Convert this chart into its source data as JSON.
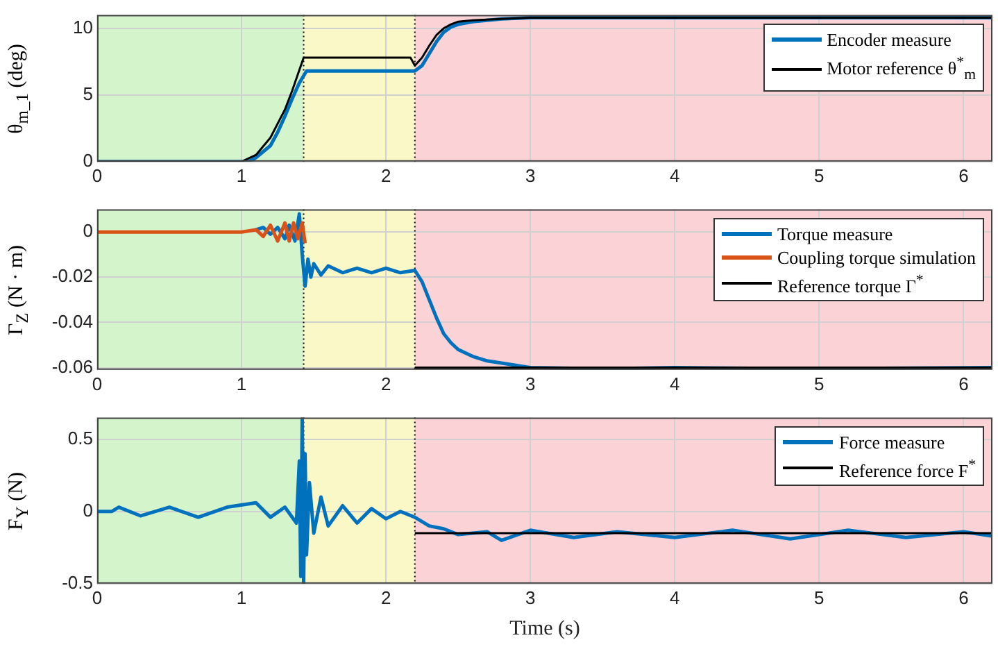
{
  "chart_data": [
    {
      "type": "line",
      "ylabel": "θ$_{m_1}$ (deg)",
      "xlim": [
        0,
        6.2
      ],
      "xticks": [
        0,
        1,
        2,
        3,
        4,
        5,
        6
      ],
      "ylim": [
        0,
        11
      ],
      "yticks": [
        0,
        5,
        10
      ],
      "grid": true,
      "legend": "top right",
      "bands": [
        {
          "axis": "x",
          "from": 0,
          "to": 1.43,
          "color": "#d4f5cc"
        },
        {
          "axis": "x",
          "from": 1.43,
          "to": 2.2,
          "color": "#fbf8c8"
        },
        {
          "axis": "x",
          "from": 2.2,
          "to": 6.2,
          "color": "#fbd3d6"
        }
      ],
      "ref_lines": [
        {
          "axis": "x",
          "value": 1.43,
          "color": "#000000",
          "line_style": "dotted"
        },
        {
          "axis": "x",
          "value": 2.2,
          "color": "#000000",
          "line_style": "dotted"
        }
      ],
      "series": [
        {
          "name": "Encoder measure",
          "color": "#0072bd",
          "x": [
            0,
            1.05,
            1.1,
            1.2,
            1.25,
            1.3,
            1.35,
            1.4,
            1.45,
            1.5,
            2.0,
            2.2,
            2.25,
            2.3,
            2.35,
            2.4,
            2.45,
            2.5,
            2.6,
            2.7,
            2.8,
            3.0,
            3.5,
            4,
            5,
            6.2
          ],
          "values": [
            0,
            0,
            0.3,
            1.2,
            2.2,
            3.4,
            4.7,
            5.9,
            6.8,
            6.8,
            6.8,
            6.8,
            7.2,
            8.1,
            9.0,
            9.7,
            10.1,
            10.3,
            10.5,
            10.6,
            10.7,
            10.8,
            10.8,
            10.8,
            10.8,
            10.8
          ]
        },
        {
          "name": "Motor reference θ$^{*}$$_{m}$",
          "color": "#000000",
          "x": [
            0,
            1.0,
            1.1,
            1.2,
            1.3,
            1.35,
            1.43,
            1.5,
            2.0,
            2.17,
            2.2,
            2.25,
            2.3,
            2.35,
            2.4,
            2.45,
            2.5,
            2.6,
            2.8,
            3.0,
            4,
            6.2
          ],
          "values": [
            0,
            0,
            0.5,
            1.8,
            3.9,
            5.3,
            7.8,
            7.8,
            7.8,
            7.8,
            7.2,
            7.8,
            8.7,
            9.5,
            10.0,
            10.3,
            10.5,
            10.6,
            10.7,
            10.8,
            10.8,
            10.8
          ]
        }
      ]
    },
    {
      "type": "line",
      "ylabel": "Γ$_{Z}$ (N · m)",
      "xlim": [
        0,
        6.2
      ],
      "xticks": [
        0,
        1,
        2,
        3,
        4,
        5,
        6
      ],
      "ylim": [
        -0.061,
        0.01
      ],
      "yticks": [
        -0.06,
        -0.04,
        -0.02,
        0
      ],
      "grid": true,
      "legend": "top right",
      "bands": [
        {
          "axis": "x",
          "from": 0,
          "to": 1.43,
          "color": "#d4f5cc"
        },
        {
          "axis": "x",
          "from": 1.43,
          "to": 2.2,
          "color": "#fbf8c8"
        },
        {
          "axis": "x",
          "from": 2.2,
          "to": 6.2,
          "color": "#fbd3d6"
        }
      ],
      "ref_lines": [
        {
          "axis": "x",
          "value": 1.43,
          "color": "#000000",
          "line_style": "dotted"
        },
        {
          "axis": "x",
          "value": 2.2,
          "color": "#000000",
          "line_style": "dotted"
        }
      ],
      "series": [
        {
          "name": "Torque measure",
          "color": "#0072bd",
          "x": [
            1.1,
            1.15,
            1.2,
            1.25,
            1.3,
            1.33,
            1.37,
            1.4,
            1.42,
            1.44,
            1.46,
            1.48,
            1.5,
            1.55,
            1.6,
            1.7,
            1.8,
            1.9,
            2.0,
            2.1,
            2.2,
            2.25,
            2.3,
            2.35,
            2.4,
            2.45,
            2.5,
            2.6,
            2.7,
            2.8,
            2.9,
            3.0,
            3.5,
            4,
            5,
            6.2
          ],
          "values": [
            0.001,
            0.002,
            -0.001,
            0.002,
            -0.003,
            0.003,
            -0.004,
            0.008,
            -0.01,
            -0.024,
            -0.012,
            -0.02,
            -0.014,
            -0.019,
            -0.015,
            -0.018,
            -0.016,
            -0.018,
            -0.016,
            -0.018,
            -0.017,
            -0.022,
            -0.03,
            -0.038,
            -0.045,
            -0.049,
            -0.052,
            -0.055,
            -0.057,
            -0.058,
            -0.059,
            -0.06,
            -0.0605,
            -0.06,
            -0.0605,
            -0.06
          ]
        },
        {
          "name": "Coupling torque simulation",
          "color": "#d95319",
          "x": [
            0,
            1.0,
            1.1,
            1.15,
            1.2,
            1.25,
            1.3,
            1.33,
            1.36,
            1.39,
            1.42,
            1.44
          ],
          "values": [
            0,
            0,
            0.001,
            -0.002,
            0.003,
            -0.004,
            0.004,
            -0.004,
            0.004,
            -0.003,
            0.004,
            -0.005
          ]
        },
        {
          "name": "Reference torque Γ$^{*}$",
          "color": "#000000",
          "x": [
            2.2,
            6.2
          ],
          "values": [
            -0.06,
            -0.06
          ]
        }
      ]
    },
    {
      "type": "line",
      "ylabel": "F$_{Y}$ (N)",
      "xlabel": "Time (s)",
      "xlim": [
        0,
        6.2
      ],
      "xticks": [
        0,
        1,
        2,
        3,
        4,
        5,
        6
      ],
      "ylim": [
        -0.5,
        0.65
      ],
      "yticks": [
        -0.5,
        0,
        0.5
      ],
      "grid": true,
      "legend": "top right",
      "bands": [
        {
          "axis": "x",
          "from": 0,
          "to": 1.43,
          "color": "#d4f5cc"
        },
        {
          "axis": "x",
          "from": 1.43,
          "to": 2.2,
          "color": "#fbf8c8"
        },
        {
          "axis": "x",
          "from": 2.2,
          "to": 6.2,
          "color": "#fbd3d6"
        }
      ],
      "ref_lines": [
        {
          "axis": "x",
          "value": 1.43,
          "color": "#000000",
          "line_style": "dotted"
        },
        {
          "axis": "x",
          "value": 2.2,
          "color": "#000000",
          "line_style": "dotted"
        }
      ],
      "series": [
        {
          "name": "Force measure",
          "color": "#0072bd",
          "x": [
            0,
            0.1,
            0.15,
            0.3,
            0.5,
            0.7,
            0.9,
            1.1,
            1.2,
            1.3,
            1.38,
            1.4,
            1.41,
            1.42,
            1.43,
            1.44,
            1.45,
            1.47,
            1.5,
            1.55,
            1.6,
            1.7,
            1.8,
            1.9,
            2.0,
            2.1,
            2.2,
            2.3,
            2.4,
            2.5,
            2.7,
            2.8,
            3.0,
            3.3,
            3.6,
            4.0,
            4.4,
            4.8,
            5.2,
            5.6,
            6.0,
            6.2
          ],
          "values": [
            0,
            0,
            0.03,
            -0.03,
            0.03,
            -0.04,
            0.03,
            0.06,
            -0.04,
            0.03,
            -0.08,
            0.35,
            -0.45,
            0.65,
            -0.5,
            0.4,
            -0.3,
            0.2,
            -0.15,
            0.1,
            -0.1,
            0.04,
            -0.08,
            0.02,
            -0.05,
            0.0,
            -0.04,
            -0.1,
            -0.12,
            -0.16,
            -0.14,
            -0.2,
            -0.13,
            -0.18,
            -0.14,
            -0.18,
            -0.13,
            -0.19,
            -0.13,
            -0.18,
            -0.14,
            -0.17
          ]
        },
        {
          "name": "Reference force F$^{*}$",
          "color": "#000000",
          "x": [
            2.2,
            6.2
          ],
          "values": [
            -0.15,
            -0.15
          ]
        }
      ]
    }
  ]
}
